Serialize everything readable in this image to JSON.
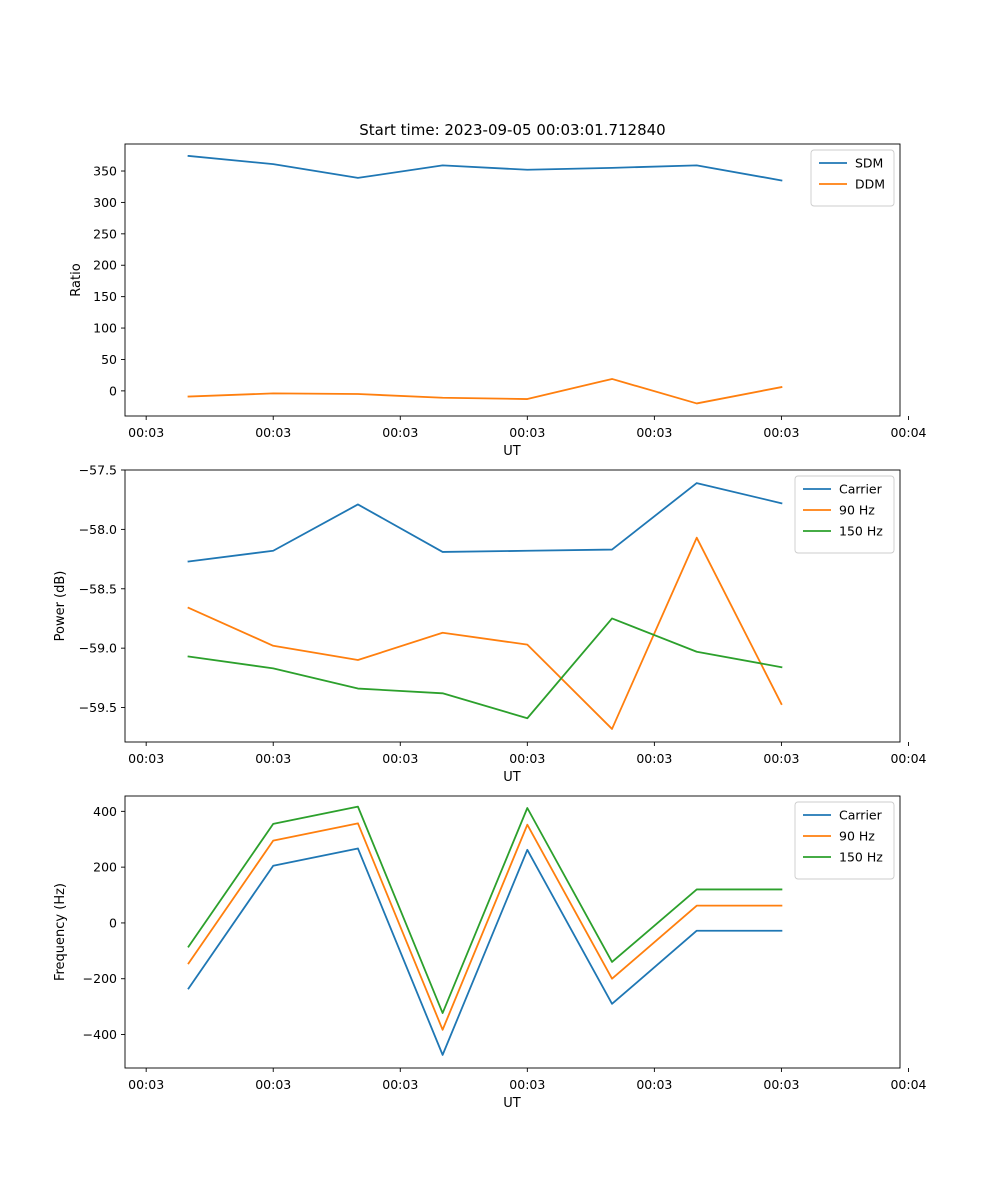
{
  "figure_title": "Start time: 2023-09-05 00:03:01.712840",
  "chart_data": [
    {
      "type": "line",
      "title": "Start time: 2023-09-05 00:03:01.712840",
      "xlabel": "UT",
      "ylabel": "Ratio",
      "x_index": [
        0,
        1,
        2,
        3,
        4,
        5,
        6,
        7
      ],
      "xlim": [
        -0.75,
        8.4
      ],
      "ylim": [
        -40,
        393
      ],
      "x_ticks": [
        {
          "pos": -0.5,
          "label": "00:03"
        },
        {
          "pos": 1,
          "label": "00:03"
        },
        {
          "pos": 2.5,
          "label": "00:03"
        },
        {
          "pos": 4,
          "label": "00:03"
        },
        {
          "pos": 5.5,
          "label": "00:03"
        },
        {
          "pos": 7,
          "label": "00:03"
        },
        {
          "pos": 8.5,
          "label": "00:04"
        }
      ],
      "y_ticks": [
        0,
        50,
        100,
        150,
        200,
        250,
        300,
        350
      ],
      "y_tick_labels": [
        "0",
        "50",
        "100",
        "150",
        "200",
        "250",
        "300",
        "350"
      ],
      "legend": [
        "SDM",
        "DDM"
      ],
      "legend_position": "upper-right",
      "series": [
        {
          "name": "SDM",
          "color": "#1f77b4",
          "values": [
            374,
            361,
            339,
            359,
            352,
            355,
            359,
            335
          ]
        },
        {
          "name": "DDM",
          "color": "#ff7f0e",
          "values": [
            -9,
            -4,
            -5,
            -11,
            -13,
            19,
            -20,
            6
          ]
        }
      ]
    },
    {
      "type": "line",
      "title": "",
      "xlabel": "UT",
      "ylabel": "Power (dB)",
      "x_index": [
        0,
        1,
        2,
        3,
        4,
        5,
        6,
        7
      ],
      "xlim": [
        -0.75,
        8.4
      ],
      "ylim": [
        -59.79,
        -57.5
      ],
      "x_ticks": [
        {
          "pos": -0.5,
          "label": "00:03"
        },
        {
          "pos": 1,
          "label": "00:03"
        },
        {
          "pos": 2.5,
          "label": "00:03"
        },
        {
          "pos": 4,
          "label": "00:03"
        },
        {
          "pos": 5.5,
          "label": "00:03"
        },
        {
          "pos": 7,
          "label": "00:03"
        },
        {
          "pos": 8.5,
          "label": "00:04"
        }
      ],
      "y_ticks": [
        -59.5,
        -59.0,
        -58.5,
        -58.0,
        -57.5
      ],
      "y_tick_labels": [
        "−59.5",
        "−59.0",
        "−58.5",
        "−58.0",
        "−57.5"
      ],
      "legend": [
        "Carrier",
        "90 Hz",
        "150 Hz"
      ],
      "legend_position": "upper-right",
      "series": [
        {
          "name": "Carrier",
          "color": "#1f77b4",
          "values": [
            -58.27,
            -58.18,
            -57.79,
            -58.19,
            -58.18,
            -58.17,
            -57.61,
            -57.78
          ]
        },
        {
          "name": "90 Hz",
          "color": "#ff7f0e",
          "values": [
            -58.66,
            -58.98,
            -59.1,
            -58.87,
            -58.97,
            -59.68,
            -58.07,
            -59.47
          ]
        },
        {
          "name": "150 Hz",
          "color": "#2ca02c",
          "values": [
            -59.07,
            -59.17,
            -59.34,
            -59.38,
            -59.59,
            -58.75,
            -59.03,
            -59.16
          ]
        }
      ]
    },
    {
      "type": "line",
      "title": "",
      "xlabel": "UT",
      "ylabel": "Frequency (Hz)",
      "x_index": [
        0,
        1,
        2,
        3,
        4,
        5,
        6,
        7
      ],
      "xlim": [
        -0.75,
        8.4
      ],
      "ylim": [
        -520,
        455
      ],
      "x_ticks": [
        {
          "pos": -0.5,
          "label": "00:03"
        },
        {
          "pos": 1,
          "label": "00:03"
        },
        {
          "pos": 2.5,
          "label": "00:03"
        },
        {
          "pos": 4,
          "label": "00:03"
        },
        {
          "pos": 5.5,
          "label": "00:03"
        },
        {
          "pos": 7,
          "label": "00:03"
        },
        {
          "pos": 8.5,
          "label": "00:04"
        }
      ],
      "y_ticks": [
        -400,
        -200,
        0,
        200,
        400
      ],
      "y_tick_labels": [
        "−400",
        "−200",
        "0",
        "200",
        "400"
      ],
      "legend": [
        "Carrier",
        "90 Hz",
        "150 Hz"
      ],
      "legend_position": "upper-right",
      "series": [
        {
          "name": "Carrier",
          "color": "#1f77b4",
          "values": [
            -235,
            205,
            267,
            -473,
            262,
            -290,
            -28,
            -28
          ]
        },
        {
          "name": "90 Hz",
          "color": "#ff7f0e",
          "values": [
            -145,
            295,
            357,
            -383,
            352,
            -200,
            62,
            62
          ]
        },
        {
          "name": "150 Hz",
          "color": "#2ca02c",
          "values": [
            -85,
            355,
            417,
            -323,
            412,
            -140,
            120,
            120
          ]
        }
      ]
    }
  ]
}
